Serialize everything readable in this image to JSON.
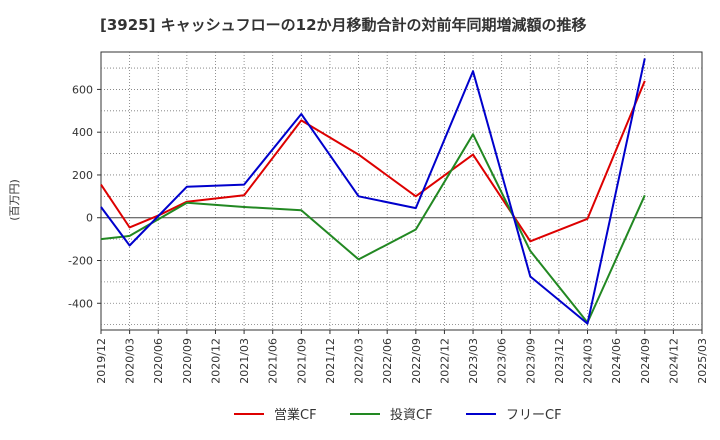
{
  "chart_data": {
    "type": "line",
    "title": "[3925]  キャッシュフローの12か月移動合計の対前年同期増減額の推移",
    "ylabel": "(百万円)",
    "xlabel": "",
    "ylim": [
      -525,
      775
    ],
    "yticks": [
      -400,
      -200,
      0,
      200,
      400,
      600
    ],
    "categories": [
      "2019/12",
      "2020/03",
      "2020/06",
      "2020/09",
      "2020/12",
      "2021/03",
      "2021/06",
      "2021/09",
      "2021/12",
      "2022/03",
      "2022/06",
      "2022/09",
      "2022/12",
      "2023/03",
      "2023/06",
      "2023/09",
      "2023/12",
      "2024/03",
      "2024/06",
      "2024/09",
      "2024/12",
      "2025/03"
    ],
    "grid": true,
    "legend_position": "bottom",
    "series": [
      {
        "name": "営業CF",
        "color": "#dd0000",
        "values": [
          155,
          -45,
          10,
          75,
          null,
          105,
          null,
          455,
          null,
          295,
          null,
          100,
          null,
          295,
          null,
          -110,
          null,
          -5,
          null,
          640,
          null,
          null
        ]
      },
      {
        "name": "投資CF",
        "color": "#228822",
        "values": [
          -100,
          -85,
          null,
          70,
          null,
          50,
          null,
          35,
          null,
          -195,
          null,
          -55,
          null,
          390,
          null,
          -155,
          null,
          -490,
          null,
          105,
          null,
          null
        ]
      },
      {
        "name": "フリーCF",
        "color": "#0000cc",
        "values": [
          50,
          -130,
          null,
          145,
          null,
          155,
          null,
          485,
          null,
          100,
          null,
          45,
          null,
          685,
          null,
          -275,
          null,
          -495,
          null,
          745,
          null,
          null
        ]
      }
    ]
  }
}
